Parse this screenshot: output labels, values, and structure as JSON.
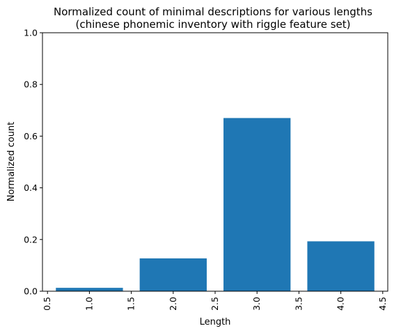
{
  "chart_data": {
    "type": "bar",
    "title_line1": "Normalized count of minimal descriptions for various lengths",
    "title_line2": "(chinese phonemic inventory with riggle feature set)",
    "xlabel": "Length",
    "ylabel": "Normalized count",
    "x": [
      1,
      2,
      3,
      4
    ],
    "values": [
      0.013,
      0.127,
      0.67,
      0.193
    ],
    "bar_width": 0.8,
    "xlim": [
      0.44,
      4.56
    ],
    "ylim": [
      0,
      1.0
    ],
    "x_ticks": [
      0.5,
      1.0,
      1.5,
      2.0,
      2.5,
      3.0,
      3.5,
      4.0,
      4.5
    ],
    "x_tick_labels": [
      "0.5",
      "1.0",
      "1.5",
      "2.0",
      "2.5",
      "3.0",
      "3.5",
      "4.0",
      "4.5"
    ],
    "y_ticks": [
      0,
      0.2,
      0.4,
      0.6,
      0.8,
      1.0
    ],
    "y_tick_labels": [
      "0.0",
      "0.2",
      "0.4",
      "0.6",
      "0.8",
      "1.0"
    ],
    "x_tick_rotation": "vertical",
    "grid": false,
    "legend": "none",
    "bar_color": "#1f77b4"
  }
}
